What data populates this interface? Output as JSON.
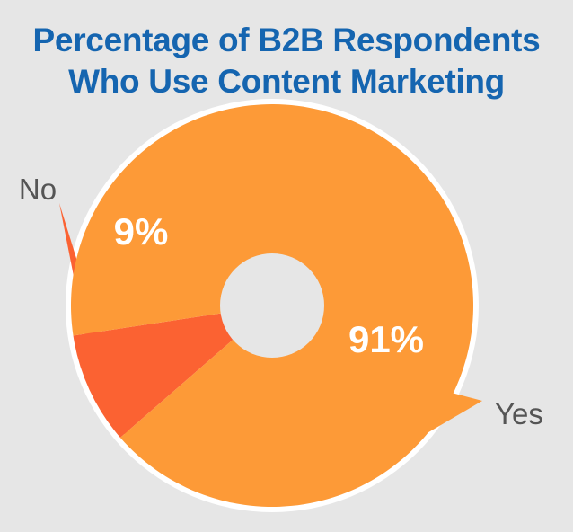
{
  "title_line1": "Percentage of B2B Respondents",
  "title_line2": "Who Use Content Marketing",
  "colors": {
    "title": "#1565b0",
    "background": "#e6e6e6",
    "ring": "#ffffff",
    "hole": "#e6e6e6",
    "label": "#555555",
    "value_label": "#ffffff"
  },
  "chart_data": {
    "type": "pie",
    "title": "Percentage of B2B Respondents Who Use Content Marketing",
    "donut": true,
    "legend": "callouts",
    "categories": [
      "No",
      "Yes"
    ],
    "values": [
      9,
      91
    ],
    "value_labels": [
      "9%",
      "91%"
    ],
    "colors": [
      "#fb6232",
      "#fd9a37"
    ],
    "start_angle_deg": -131,
    "direction": "clockwise"
  }
}
